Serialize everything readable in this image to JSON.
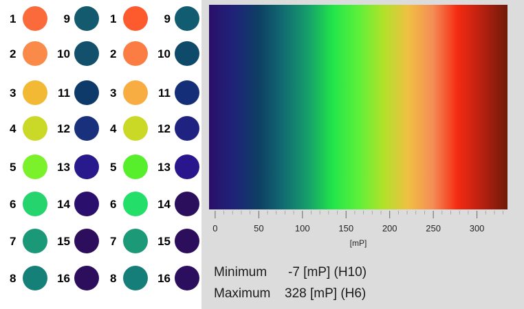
{
  "wells": {
    "plates": [
      {
        "left_numbers": [
          "1",
          "2",
          "3",
          "4",
          "5",
          "6",
          "7",
          "8"
        ],
        "left_colors": [
          "#fb6a3b",
          "#fa8a4a",
          "#f2b935",
          "#cad928",
          "#7af12a",
          "#25d46c",
          "#1a9878",
          "#148078"
        ],
        "right_numbers": [
          "9",
          "10",
          "11",
          "12",
          "13",
          "14",
          "15",
          "16"
        ],
        "right_colors": [
          "#145a6e",
          "#12506c",
          "#0e3a6a",
          "#19307c",
          "#28198c",
          "#2b0f6c",
          "#2c0e5c",
          "#2c0e5c"
        ]
      },
      {
        "left_numbers": [
          "1",
          "2",
          "3",
          "4",
          "5",
          "6",
          "7",
          "8"
        ],
        "left_colors": [
          "#fd5a2e",
          "#fb7d44",
          "#f8ad42",
          "#c9d926",
          "#57ee2c",
          "#24de6a",
          "#1c9a78",
          "#167e78"
        ],
        "right_numbers": [
          "9",
          "10",
          "11",
          "12",
          "13",
          "14",
          "15",
          "16"
        ],
        "right_colors": [
          "#125c72",
          "#0f4a6b",
          "#142f78",
          "#1f2280",
          "#2a168c",
          "#2b0e5c",
          "#2d0e5c",
          "#2c0e5e"
        ]
      }
    ]
  },
  "colorbar": {
    "gradient": [
      "#2a0f6a",
      "#1f2378",
      "#0e3f64",
      "#126c72",
      "#16a06a",
      "#23e64a",
      "#5cf03a",
      "#b0e22a",
      "#f0c043",
      "#f48d56",
      "#f52a12",
      "#b52010",
      "#6e1a0a"
    ],
    "axis_min": -7,
    "axis_max": 335,
    "ticks": [
      "0",
      "50",
      "100",
      "150",
      "200",
      "250",
      "300"
    ],
    "tick_values": [
      0,
      50,
      100,
      150,
      200,
      250,
      300
    ],
    "unit": "[mP]"
  },
  "stats": {
    "min_label": "Minimum",
    "min_value": "-7 [mP] (H10)",
    "max_label": "Maximum",
    "max_value": "328 [mP] (H6)"
  }
}
